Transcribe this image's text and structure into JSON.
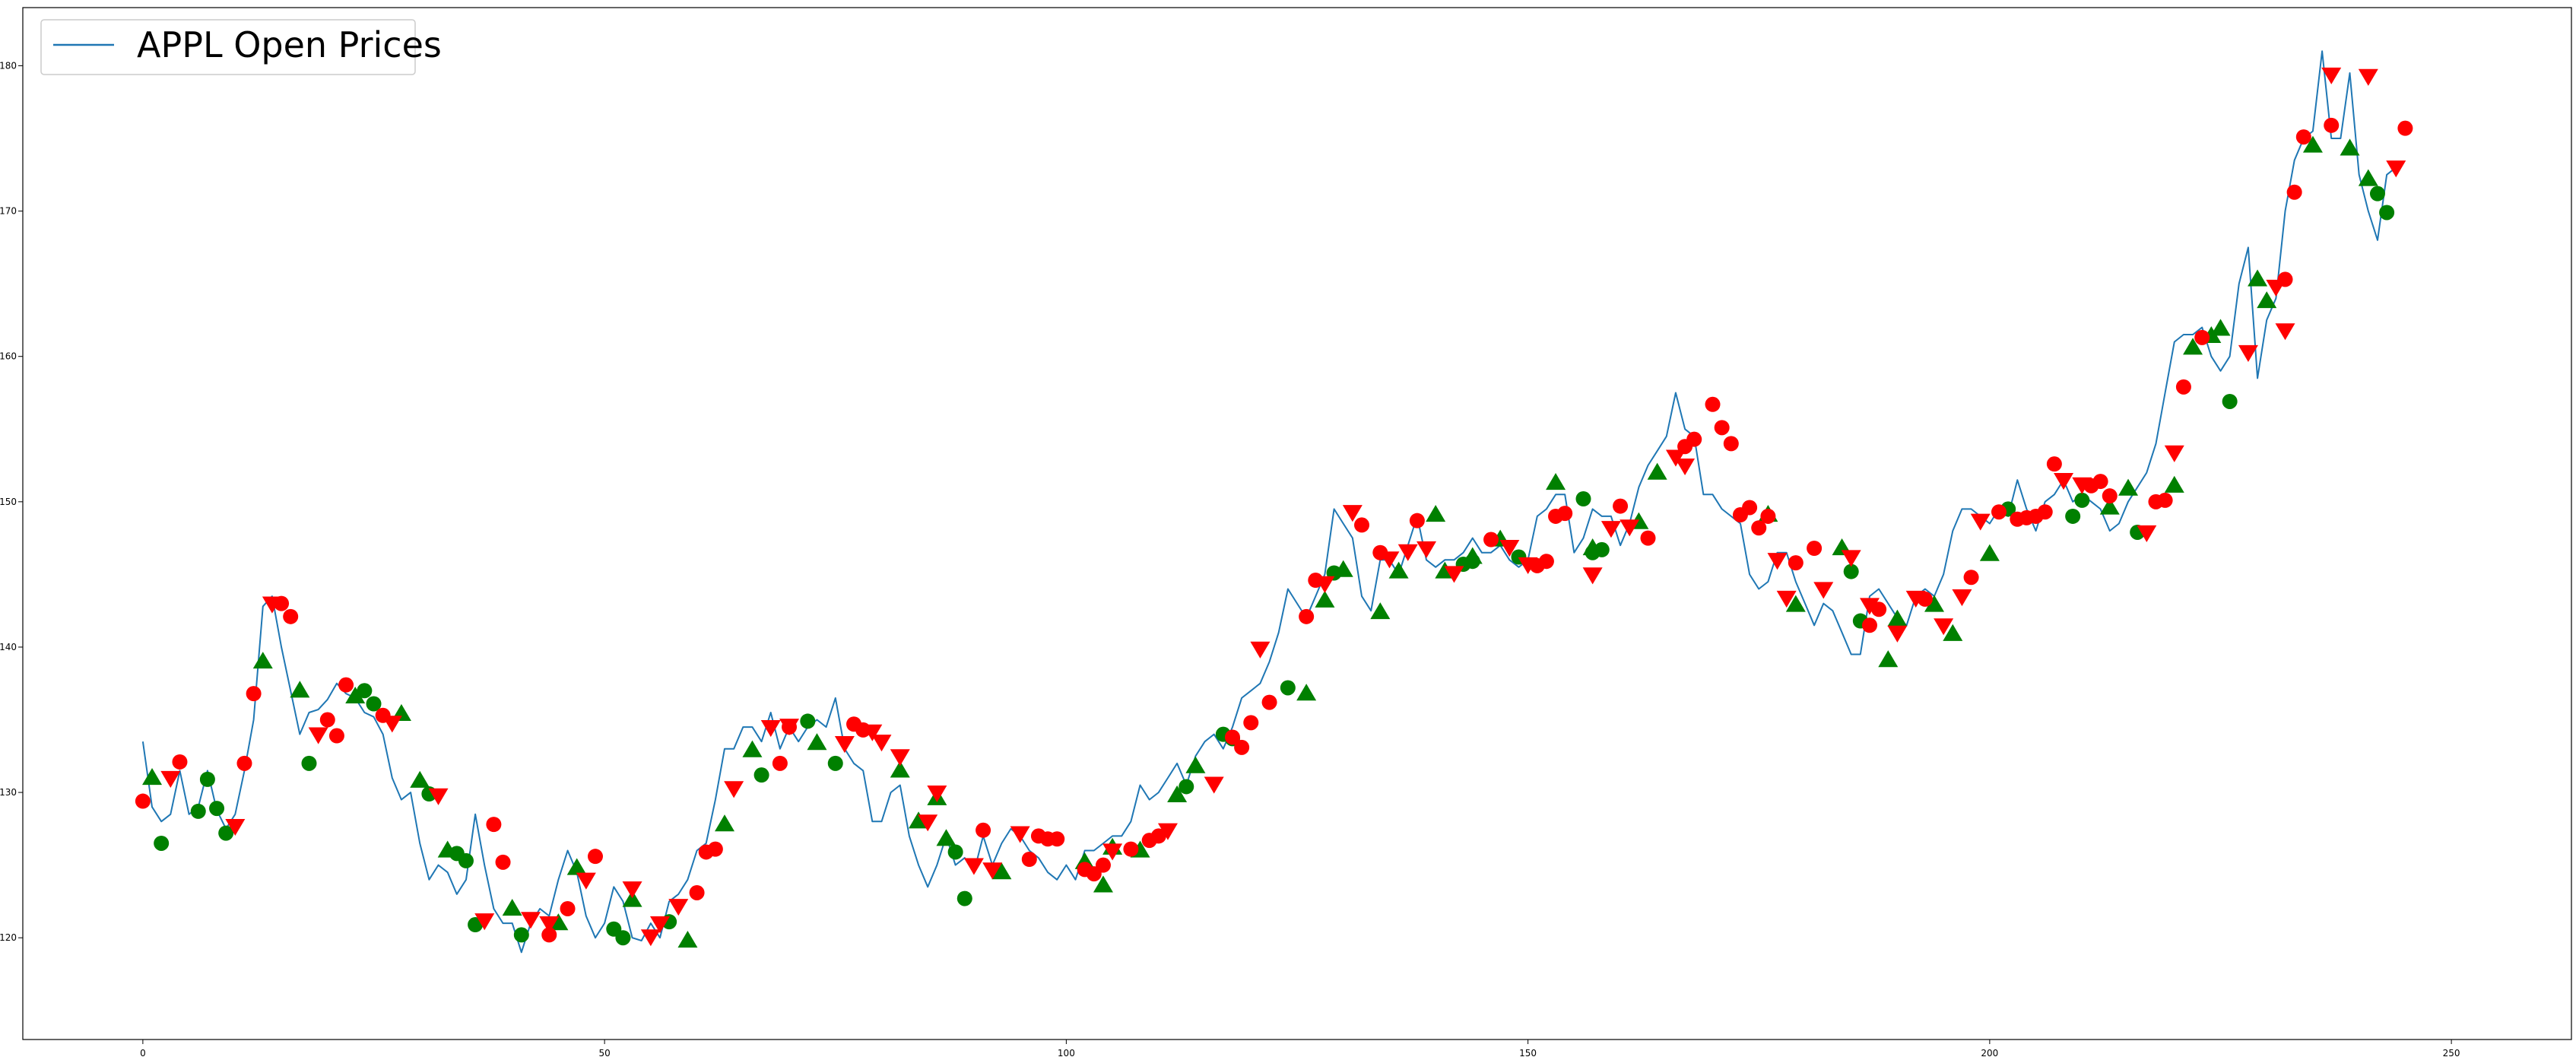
{
  "chart_data": {
    "type": "line",
    "title": "",
    "xlabel": "",
    "ylabel": "",
    "xlim": [
      -13,
      263
    ],
    "ylim": [
      113,
      184
    ],
    "xticks": [
      0,
      50,
      100,
      150,
      200,
      250
    ],
    "yticks": [
      120,
      130,
      140,
      150,
      160,
      170,
      180
    ],
    "grid": false,
    "legend": {
      "placement": "top-left",
      "entries": [
        "APPL Open Prices"
      ]
    },
    "colors": {
      "line": "#1f77b4",
      "up": "#008000",
      "down": "#ff0000"
    },
    "series": [
      {
        "name": "APPL Open Prices",
        "values": [
          133.5,
          129.0,
          128.0,
          128.5,
          131.5,
          128.5,
          129.0,
          131.5,
          128.8,
          127.5,
          128.5,
          131.5,
          135.0,
          142.8,
          143.5,
          140.0,
          137.0,
          134.0,
          135.5,
          135.7,
          136.4,
          137.5,
          136.8,
          136.5,
          135.5,
          135.2,
          134.0,
          131.0,
          129.5,
          130.0,
          126.5,
          124.0,
          125.0,
          124.5,
          123.0,
          124.0,
          128.5,
          125.0,
          122.0,
          121.0,
          121.0,
          119.0,
          121.0,
          122.0,
          121.5,
          124.0,
          126.0,
          124.5,
          121.5,
          120.0,
          121.0,
          123.5,
          122.5,
          120.0,
          119.8,
          121.0,
          120.0,
          122.5,
          123.0,
          124.0,
          126.0,
          126.5,
          129.5,
          133.0,
          133.0,
          134.5,
          134.5,
          133.5,
          135.5,
          133.0,
          134.5,
          133.5,
          134.5,
          135.0,
          134.5,
          136.5,
          133.0,
          132.0,
          131.5,
          128.0,
          128.0,
          130.0,
          130.5,
          127.0,
          125.0,
          123.5,
          125.0,
          127.0,
          125.0,
          125.5,
          124.5,
          127.0,
          125.0,
          126.5,
          127.5,
          127.0,
          126.0,
          125.5,
          124.5,
          124.0,
          125.0,
          124.0,
          126.0,
          126.0,
          126.5,
          127.0,
          127.0,
          128.0,
          130.5,
          129.5,
          130.0,
          131.0,
          132.0,
          130.5,
          132.5,
          133.5,
          134.0,
          133.0,
          134.5,
          136.5,
          137.0,
          137.5,
          139.0,
          141.0,
          144.0,
          143.0,
          142.0,
          143.5,
          145.0,
          149.5,
          148.5,
          147.5,
          143.5,
          142.5,
          146.0,
          146.0,
          145.0,
          147.0,
          149.0,
          146.0,
          145.5,
          146.0,
          146.0,
          146.5,
          147.5,
          146.5,
          146.5,
          147.0,
          146.0,
          145.5,
          146.0,
          149.0,
          149.5,
          150.5,
          150.5,
          146.5,
          147.5,
          149.5,
          149.0,
          149.0,
          147.0,
          148.5,
          151.0,
          152.5,
          153.5,
          154.5,
          157.5,
          155.0,
          154.5,
          150.5,
          150.5,
          149.5,
          149.0,
          148.5,
          145.0,
          144.0,
          144.5,
          146.5,
          146.5,
          144.5,
          143.0,
          141.5,
          143.0,
          142.5,
          141.0,
          139.5,
          139.5,
          143.5,
          144.0,
          143.0,
          142.0,
          141.5,
          143.5,
          144.0,
          143.5,
          145.0,
          148.0,
          149.5,
          149.5,
          149.0,
          148.5,
          149.5,
          149.0,
          151.5,
          149.5,
          148.0,
          150.0,
          150.5,
          151.5,
          150.0,
          150.5,
          150.0,
          149.5,
          148.0,
          148.5,
          150.0,
          151.0,
          152.0,
          154.0,
          157.5,
          161.0,
          161.5,
          161.5,
          162.0,
          160.0,
          159.0,
          160.0,
          165.0,
          167.5,
          158.5,
          162.5,
          164.0,
          170.0,
          173.5,
          175.0,
          175.5,
          181.0,
          175.0,
          175.0,
          179.5,
          172.5,
          170.0,
          168.0,
          172.5,
          173.0
        ]
      },
      {
        "name": "",
        "marker": "circle-up",
        "points": [
          [
            2,
            126.5
          ],
          [
            6,
            128.7
          ],
          [
            7,
            130.9
          ],
          [
            8,
            128.9
          ],
          [
            9,
            127.2
          ],
          [
            18,
            132.0
          ],
          [
            24,
            137.0
          ],
          [
            25,
            136.1
          ],
          [
            31,
            129.9
          ],
          [
            34,
            125.8
          ],
          [
            35,
            125.3
          ],
          [
            36,
            120.9
          ],
          [
            41,
            120.2
          ],
          [
            51,
            120.6
          ],
          [
            52,
            120.0
          ],
          [
            57,
            121.1
          ],
          [
            67,
            131.2
          ],
          [
            72,
            134.9
          ],
          [
            75,
            132.0
          ],
          [
            89,
            122.7
          ],
          [
            88,
            125.9
          ],
          [
            113,
            130.4
          ],
          [
            117,
            134.0
          ],
          [
            118,
            133.7
          ],
          [
            124,
            137.2
          ],
          [
            129,
            145.1
          ],
          [
            143,
            145.7
          ],
          [
            144,
            145.9
          ],
          [
            149,
            146.2
          ],
          [
            156,
            150.2
          ],
          [
            157,
            146.5
          ],
          [
            158,
            146.7
          ],
          [
            186,
            141.8
          ],
          [
            185,
            145.2
          ],
          [
            202,
            149.5
          ],
          [
            209,
            149.0
          ],
          [
            210,
            150.1
          ],
          [
            216,
            147.9
          ],
          [
            226,
            156.9
          ],
          [
            243,
            169.9
          ],
          [
            242,
            171.2
          ]
        ]
      },
      {
        "name": "",
        "marker": "triangle-up",
        "points": [
          [
            1,
            131.0
          ],
          [
            13,
            139.0
          ],
          [
            17,
            137.0
          ],
          [
            23,
            136.6
          ],
          [
            28,
            135.4
          ],
          [
            30,
            130.8
          ],
          [
            33,
            126.0
          ],
          [
            40,
            122.0
          ],
          [
            45,
            121.0
          ],
          [
            47,
            124.8
          ],
          [
            53,
            122.6
          ],
          [
            59,
            119.8
          ],
          [
            63,
            127.8
          ],
          [
            66,
            132.9
          ],
          [
            73,
            133.4
          ],
          [
            82,
            131.5
          ],
          [
            84,
            128.0
          ],
          [
            86,
            129.6
          ],
          [
            87,
            126.8
          ],
          [
            93,
            124.5
          ],
          [
            102,
            125.2
          ],
          [
            104,
            123.6
          ],
          [
            105,
            126.2
          ],
          [
            108,
            126.0
          ],
          [
            112,
            129.8
          ],
          [
            114,
            131.8
          ],
          [
            126,
            136.8
          ],
          [
            128,
            143.2
          ],
          [
            130,
            145.3
          ],
          [
            134,
            142.4
          ],
          [
            136,
            145.2
          ],
          [
            140,
            149.1
          ],
          [
            141,
            145.2
          ],
          [
            144,
            146.2
          ],
          [
            147,
            147.4
          ],
          [
            153,
            151.3
          ],
          [
            157,
            146.8
          ],
          [
            162,
            148.6
          ],
          [
            164,
            152.0
          ],
          [
            176,
            149.1
          ],
          [
            179,
            142.9
          ],
          [
            184,
            146.8
          ],
          [
            189,
            139.1
          ],
          [
            190,
            141.9
          ],
          [
            194,
            142.9
          ],
          [
            196,
            140.9
          ],
          [
            200,
            146.4
          ],
          [
            213,
            149.6
          ],
          [
            215,
            150.9
          ],
          [
            220,
            151.1
          ],
          [
            222,
            160.6
          ],
          [
            224,
            161.4
          ],
          [
            225,
            161.9
          ],
          [
            229,
            165.3
          ],
          [
            230,
            163.8
          ],
          [
            235,
            174.5
          ],
          [
            239,
            174.3
          ],
          [
            241,
            172.2
          ]
        ]
      },
      {
        "name": "",
        "marker": "circle-down",
        "points": [
          [
            0,
            129.4
          ],
          [
            4,
            132.1
          ],
          [
            11,
            132.0
          ],
          [
            12,
            136.8
          ],
          [
            15,
            143.0
          ],
          [
            16,
            142.1
          ],
          [
            20,
            135.0
          ],
          [
            21,
            133.9
          ],
          [
            22,
            137.4
          ],
          [
            26,
            135.3
          ],
          [
            38,
            127.8
          ],
          [
            39,
            125.2
          ],
          [
            44,
            120.2
          ],
          [
            49,
            125.6
          ],
          [
            46,
            122.0
          ],
          [
            62,
            126.1
          ],
          [
            61,
            125.9
          ],
          [
            60,
            123.1
          ],
          [
            69,
            132.0
          ],
          [
            70,
            134.5
          ],
          [
            77,
            134.7
          ],
          [
            78,
            134.3
          ],
          [
            91,
            127.4
          ],
          [
            96,
            125.4
          ],
          [
            97,
            127.0
          ],
          [
            98,
            126.8
          ],
          [
            99,
            126.8
          ],
          [
            102,
            124.7
          ],
          [
            103,
            124.4
          ],
          [
            104,
            125.0
          ],
          [
            107,
            126.1
          ],
          [
            109,
            126.7
          ],
          [
            110,
            127.0
          ],
          [
            118,
            133.8
          ],
          [
            119,
            133.1
          ],
          [
            120,
            134.8
          ],
          [
            122,
            136.2
          ],
          [
            126,
            142.1
          ],
          [
            127,
            144.6
          ],
          [
            132,
            148.4
          ],
          [
            134,
            146.5
          ],
          [
            138,
            148.7
          ],
          [
            146,
            147.4
          ],
          [
            151,
            145.6
          ],
          [
            152,
            145.9
          ],
          [
            153,
            149.0
          ],
          [
            154,
            149.2
          ],
          [
            160,
            149.7
          ],
          [
            163,
            147.5
          ],
          [
            167,
            153.8
          ],
          [
            168,
            154.3
          ],
          [
            170,
            156.7
          ],
          [
            171,
            155.1
          ],
          [
            172,
            154.0
          ],
          [
            173,
            149.1
          ],
          [
            174,
            149.6
          ],
          [
            175,
            148.2
          ],
          [
            176,
            149.0
          ],
          [
            179,
            145.8
          ],
          [
            181,
            146.8
          ],
          [
            187,
            141.5
          ],
          [
            188,
            142.6
          ],
          [
            193,
            143.3
          ],
          [
            198,
            144.8
          ],
          [
            201,
            149.3
          ],
          [
            203,
            148.8
          ],
          [
            204,
            148.9
          ],
          [
            205,
            149.0
          ],
          [
            206,
            149.3
          ],
          [
            207,
            152.6
          ],
          [
            211,
            151.1
          ],
          [
            212,
            151.4
          ],
          [
            213,
            150.4
          ],
          [
            218,
            150.0
          ],
          [
            219,
            150.1
          ],
          [
            221,
            157.9
          ],
          [
            223,
            161.3
          ],
          [
            232,
            165.3
          ],
          [
            233,
            171.3
          ],
          [
            234,
            175.1
          ],
          [
            237,
            175.9
          ],
          [
            245,
            175.7
          ]
        ]
      },
      {
        "name": "",
        "marker": "triangle-down",
        "points": [
          [
            3,
            131.0
          ],
          [
            10,
            127.7
          ],
          [
            14,
            143.0
          ],
          [
            19,
            134.0
          ],
          [
            27,
            134.8
          ],
          [
            32,
            129.8
          ],
          [
            37,
            121.2
          ],
          [
            42,
            121.3
          ],
          [
            44,
            121.0
          ],
          [
            48,
            124.0
          ],
          [
            53,
            123.4
          ],
          [
            55,
            120.1
          ],
          [
            56,
            121.0
          ],
          [
            58,
            122.2
          ],
          [
            64,
            130.3
          ],
          [
            68,
            134.5
          ],
          [
            70,
            134.6
          ],
          [
            76,
            133.4
          ],
          [
            79,
            134.2
          ],
          [
            80,
            133.5
          ],
          [
            82,
            132.5
          ],
          [
            85,
            128.0
          ],
          [
            86,
            130.0
          ],
          [
            90,
            125.0
          ],
          [
            92,
            124.7
          ],
          [
            95,
            127.2
          ],
          [
            105,
            126.0
          ],
          [
            111,
            127.4
          ],
          [
            116,
            130.6
          ],
          [
            121,
            139.9
          ],
          [
            128,
            144.4
          ],
          [
            131,
            149.3
          ],
          [
            135,
            146.1
          ],
          [
            137,
            146.6
          ],
          [
            139,
            146.8
          ],
          [
            142,
            145.1
          ],
          [
            148,
            146.9
          ],
          [
            150,
            145.7
          ],
          [
            157,
            145.0
          ],
          [
            159,
            148.2
          ],
          [
            161,
            148.3
          ],
          [
            166,
            153.1
          ],
          [
            167,
            152.5
          ],
          [
            177,
            146.0
          ],
          [
            178,
            143.4
          ],
          [
            182,
            144.0
          ],
          [
            185,
            146.2
          ],
          [
            187,
            142.9
          ],
          [
            190,
            141.0
          ],
          [
            192,
            143.4
          ],
          [
            195,
            141.5
          ],
          [
            197,
            143.5
          ],
          [
            199,
            148.7
          ],
          [
            208,
            151.5
          ],
          [
            210,
            151.2
          ],
          [
            217,
            147.9
          ],
          [
            220,
            153.4
          ],
          [
            228,
            160.3
          ],
          [
            231,
            164.8
          ],
          [
            232,
            161.8
          ],
          [
            237,
            179.4
          ],
          [
            241,
            179.3
          ],
          [
            244,
            173.0
          ]
        ]
      }
    ]
  }
}
